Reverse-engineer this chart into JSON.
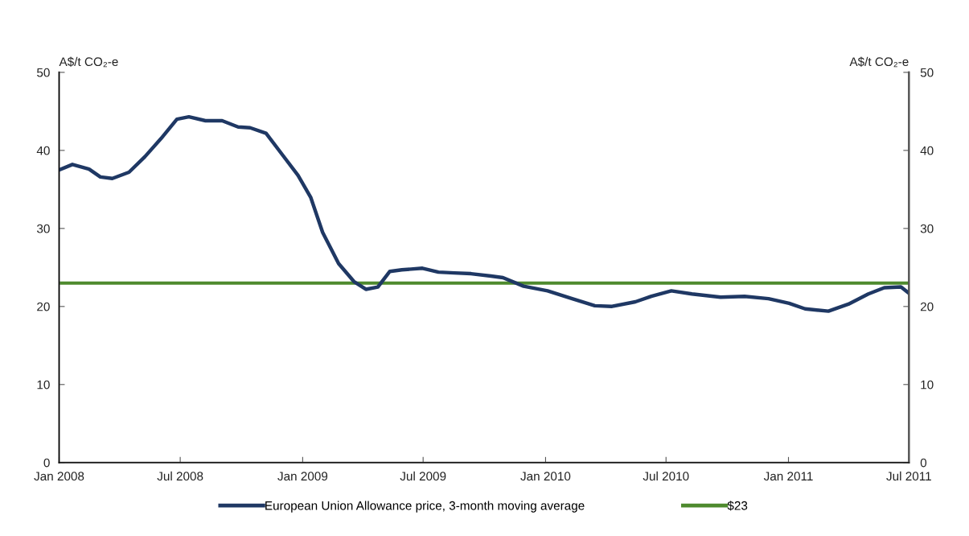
{
  "chart_data": {
    "type": "line",
    "ylabel": "A$/t CO₂-e",
    "y2label": "A$/t CO₂-e",
    "series": [
      {
        "name": "European Union Allowance price, 3-month moving average",
        "color": "#1f3864",
        "x": [
          "2008-01-01",
          "2008-01-21",
          "2008-02-15",
          "2008-03-03",
          "2008-03-21",
          "2008-04-15",
          "2008-05-09",
          "2008-06-02",
          "2008-06-26",
          "2008-07-14",
          "2008-08-08",
          "2008-09-02",
          "2008-09-26",
          "2008-10-14",
          "2008-11-07",
          "2008-12-01",
          "2008-12-25",
          "2009-01-13",
          "2009-01-31",
          "2009-02-24",
          "2009-03-19",
          "2009-04-06",
          "2009-04-24",
          "2009-05-12",
          "2009-05-30",
          "2009-06-30",
          "2009-07-24",
          "2009-08-17",
          "2009-09-11",
          "2009-10-11",
          "2009-10-29",
          "2009-11-29",
          "2010-01-04",
          "2010-02-10",
          "2010-03-16",
          "2010-04-10",
          "2010-05-16",
          "2010-06-09",
          "2010-07-09",
          "2010-08-09",
          "2010-09-21",
          "2010-10-27",
          "2010-12-02",
          "2011-01-02",
          "2011-01-26",
          "2011-03-02",
          "2011-04-01",
          "2011-05-01",
          "2011-05-25",
          "2011-06-19",
          "2011-07-01"
        ],
        "values": [
          37.5,
          38.2,
          37.6,
          36.6,
          36.4,
          37.2,
          39.2,
          41.5,
          44.0,
          44.3,
          43.8,
          43.8,
          43.0,
          42.9,
          42.2,
          39.5,
          36.8,
          34.0,
          29.5,
          25.5,
          23.2,
          22.2,
          22.5,
          24.5,
          24.7,
          24.9,
          24.4,
          24.3,
          24.2,
          23.9,
          23.7,
          22.6,
          22.0,
          21.0,
          20.1,
          20.0,
          20.6,
          21.3,
          22.0,
          21.6,
          21.2,
          21.3,
          21.0,
          20.4,
          19.7,
          19.4,
          20.3,
          21.6,
          22.4,
          22.5,
          21.7
        ]
      },
      {
        "name": "$23",
        "color": "#4e8a2e",
        "x": [
          "2008-01-01",
          "2011-07-01"
        ],
        "values": [
          23,
          23
        ]
      }
    ],
    "xlim": [
      "2008-01",
      "2011-07"
    ],
    "xticks": [
      {
        "value": "2008-01",
        "label": "Jan 2008"
      },
      {
        "value": "2008-07",
        "label": "Jul 2008"
      },
      {
        "value": "2009-01",
        "label": "Jan 2009"
      },
      {
        "value": "2009-07",
        "label": "Jul 2009"
      },
      {
        "value": "2010-01",
        "label": "Jan 2010"
      },
      {
        "value": "2010-07",
        "label": "Jul 2010"
      },
      {
        "value": "2011-01",
        "label": "Jan 2011"
      },
      {
        "value": "2011-07",
        "label": "Jul 2011"
      }
    ],
    "ylim": [
      0,
      50
    ],
    "yticks": [
      0,
      10,
      20,
      30,
      40,
      50
    ],
    "y2lim": [
      0,
      50
    ],
    "y2ticks": [
      0,
      10,
      20,
      30,
      40,
      50
    ],
    "legend": "bottom",
    "grid": false,
    "marker": "none",
    "line_style": "solid"
  }
}
